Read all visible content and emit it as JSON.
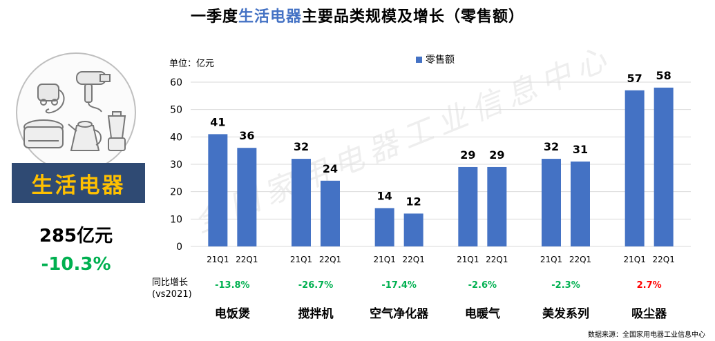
{
  "title": {
    "prefix": "一季度",
    "highlight": "生活电器",
    "suffix": "主要品类规模及增长（零售额）"
  },
  "left_panel": {
    "category_label": "生活电器",
    "total": "285亿元",
    "total_growth": "-10.3%",
    "illustration": [
      "vacuum-cleaner-icon",
      "hair-dryer-icon",
      "rice-cooker-icon",
      "kettle-icon",
      "blender-icon"
    ]
  },
  "unit_label": "单位：亿元",
  "yoy_label_line1": "同比增长",
  "yoy_label_line2": "(vs2021)",
  "source": "数据来源：全国家用电器工业信息中心",
  "watermark": "全国家用电器工业信息中心",
  "colors": {
    "bar": "#4472c4",
    "positive": "#ff0000",
    "negative": "#00b050",
    "banner_bg": "#2f4a73",
    "banner_text": "#ffc000"
  },
  "chart_data": {
    "type": "bar",
    "legend": [
      "零售额"
    ],
    "ylim": [
      0,
      60
    ],
    "yticks": [
      0,
      10,
      20,
      30,
      40,
      50,
      60
    ],
    "grid": true,
    "groups": [
      {
        "category": "电饭煲",
        "growth": "-13.8%",
        "bars": [
          {
            "x": "21Q1",
            "value": 41
          },
          {
            "x": "22Q1",
            "value": 36
          }
        ]
      },
      {
        "category": "搅拌机",
        "growth": "-26.7%",
        "bars": [
          {
            "x": "21Q1",
            "value": 32
          },
          {
            "x": "22Q1",
            "value": 24
          }
        ]
      },
      {
        "category": "空气净化器",
        "growth": "-17.4%",
        "bars": [
          {
            "x": "21Q1",
            "value": 14
          },
          {
            "x": "22Q1",
            "value": 12
          }
        ]
      },
      {
        "category": "电暖气",
        "growth": "-2.6%",
        "bars": [
          {
            "x": "21Q1",
            "value": 29
          },
          {
            "x": "22Q1",
            "value": 29
          }
        ]
      },
      {
        "category": "美发系列",
        "growth": "-2.3%",
        "bars": [
          {
            "x": "21Q1",
            "value": 32
          },
          {
            "x": "22Q1",
            "value": 31
          }
        ]
      },
      {
        "category": "吸尘器",
        "growth": "2.7%",
        "bars": [
          {
            "x": "21Q1",
            "value": 57
          },
          {
            "x": "22Q1",
            "value": 58
          }
        ]
      }
    ]
  }
}
